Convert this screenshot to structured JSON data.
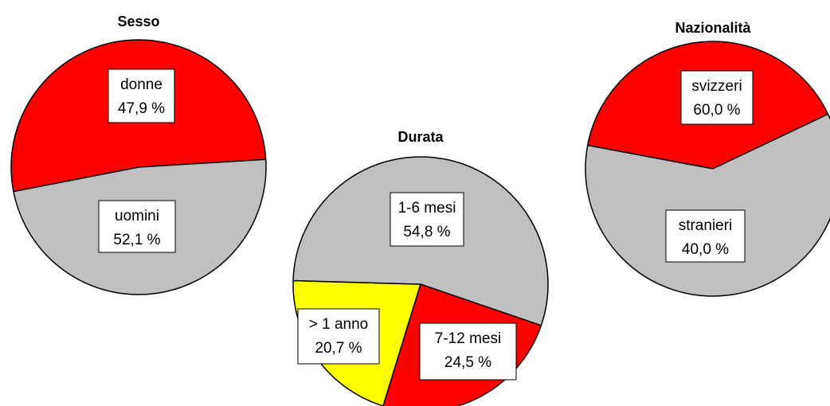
{
  "chart_data": [
    {
      "type": "pie",
      "title": "Sesso",
      "slices": [
        {
          "label": "donne",
          "value": 47.9,
          "value_text": "47,9 %",
          "color": "#c0c0c0"
        },
        {
          "label": "uomini",
          "value": 52.1,
          "value_text": "52,1 %",
          "color": "#ff0000"
        }
      ]
    },
    {
      "type": "pie",
      "title": "Durata",
      "slices": [
        {
          "label": "1-6 mesi",
          "value": 54.8,
          "value_text": "54,8 %",
          "color": "#c0c0c0"
        },
        {
          "label": "7-12 mesi",
          "value": 24.5,
          "value_text": "24,5 %",
          "color": "#ff0000"
        },
        {
          "label": "> 1 anno",
          "value": 20.7,
          "value_text": "20,7 %",
          "color": "#ffff00"
        }
      ]
    },
    {
      "type": "pie",
      "title": "Nazionalità",
      "slices": [
        {
          "label": "svizzeri",
          "value": 60.0,
          "value_text": "60,0 %",
          "color": "#c0c0c0"
        },
        {
          "label": "stranieri",
          "value": 40.0,
          "value_text": "40,0 %",
          "color": "#ff0000"
        }
      ]
    }
  ]
}
